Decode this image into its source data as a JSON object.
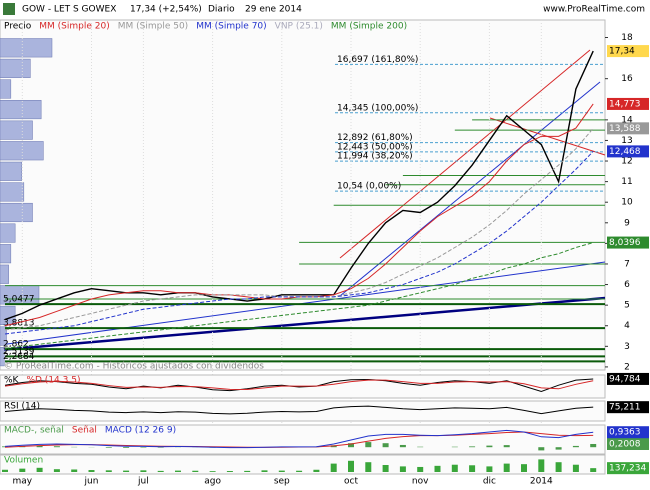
{
  "header": {
    "symbol": "GOW - LET S GOWEX",
    "quote": "17,34 (+2,54%)",
    "period": "Diario",
    "date": "29 ene 2014",
    "site": "www.ProRealTime.com",
    "watermark": "© ProRealTime.com - Históricos ajustados con dividendos",
    "legend_extra": "VNP (25.1)"
  },
  "chart_data": [
    {
      "type": "line",
      "ylim": [
        1.85,
        18.85
      ],
      "yticks": [
        2,
        3,
        4,
        5,
        6,
        7,
        8,
        9,
        10,
        11,
        12,
        13,
        14,
        16,
        18
      ],
      "categories": [
        null,
        "may",
        null,
        null,
        null,
        "jun",
        null,
        null,
        "jul",
        null,
        null,
        null,
        "ago",
        null,
        null,
        null,
        "sep",
        null,
        null,
        null,
        "oct",
        null,
        null,
        null,
        "nov",
        null,
        null,
        null,
        "dic",
        null,
        null,
        "2014",
        null,
        null,
        null
      ],
      "series": [
        {
          "name": "Precio",
          "color": "#000000",
          "box_color": "#ffd84d",
          "last_label": "17,34",
          "values": [
            4.3,
            4.6,
            5.0,
            5.3,
            5.6,
            5.8,
            5.7,
            5.6,
            5.6,
            5.5,
            5.6,
            5.6,
            5.4,
            5.3,
            5.2,
            5.3,
            5.5,
            5.5,
            5.5,
            5.5,
            6.8,
            8.0,
            9.0,
            9.6,
            9.5,
            10.0,
            10.8,
            11.8,
            13.0,
            14.2,
            13.5,
            12.8,
            11.0,
            15.5,
            17.34
          ]
        },
        {
          "name": "MM (Simple 20)",
          "color": "#d62728",
          "dash": false,
          "last_label": "14,773",
          "values": [
            4.0,
            4.2,
            4.4,
            4.7,
            5.0,
            5.3,
            5.5,
            5.6,
            5.7,
            5.7,
            5.6,
            5.6,
            5.5,
            5.5,
            5.4,
            5.3,
            5.3,
            5.4,
            5.4,
            5.5,
            5.8,
            6.3,
            7.0,
            7.8,
            8.6,
            9.3,
            9.8,
            10.3,
            11.0,
            12.0,
            12.8,
            13.2,
            13.2,
            13.6,
            14.773
          ]
        },
        {
          "name": "MM (Simple 50)",
          "color": "#999999",
          "dash": true,
          "last_label": "13,588",
          "values": [
            3.8,
            3.9,
            4.0,
            4.2,
            4.4,
            4.6,
            4.8,
            5.0,
            5.2,
            5.3,
            5.4,
            5.5,
            5.5,
            5.5,
            5.5,
            5.5,
            5.4,
            5.4,
            5.4,
            5.4,
            5.6,
            5.8,
            6.1,
            6.5,
            6.9,
            7.3,
            7.8,
            8.3,
            8.9,
            9.6,
            10.4,
            11.1,
            11.8,
            12.6,
            13.588
          ]
        },
        {
          "name": "MM (Simple 70)",
          "color": "#2233cc",
          "dash": true,
          "last_label": "12,468",
          "values": [
            3.6,
            3.7,
            3.8,
            3.9,
            4.0,
            4.2,
            4.4,
            4.6,
            4.8,
            4.9,
            5.0,
            5.1,
            5.2,
            5.3,
            5.3,
            5.4,
            5.4,
            5.4,
            5.4,
            5.4,
            5.5,
            5.6,
            5.8,
            6.0,
            6.3,
            6.6,
            7.0,
            7.5,
            8.0,
            8.6,
            9.3,
            10.0,
            10.8,
            11.6,
            12.468
          ]
        },
        {
          "name": "MM (Simple 200)",
          "color": "#2e8b2e",
          "dash": true,
          "last_label": "8,0396",
          "values": [
            2.9,
            3.0,
            3.1,
            3.2,
            3.3,
            3.4,
            3.5,
            3.6,
            3.7,
            3.8,
            3.9,
            4.0,
            4.1,
            4.2,
            4.3,
            4.4,
            4.5,
            4.6,
            4.7,
            4.8,
            4.9,
            5.0,
            5.2,
            5.4,
            5.6,
            5.8,
            6.0,
            6.3,
            6.5,
            6.8,
            7.0,
            7.3,
            7.5,
            7.8,
            8.0396
          ]
        }
      ],
      "fib": [
        {
          "value": 16.697,
          "label": "16,697 (161,80%)"
        },
        {
          "value": 14.345,
          "label": "14,345 (100,00%)"
        },
        {
          "value": 12.892,
          "label": "12,892 (61,80%)"
        },
        {
          "value": 12.443,
          "label": "12,443 (50,00%)"
        },
        {
          "value": 11.994,
          "label": "11,994 (38,20%)"
        },
        {
          "value": 10.54,
          "label": "10,54 (0,00%)"
        }
      ],
      "levels": [
        {
          "value": 14.0,
          "from": 27
        },
        {
          "value": 13.5,
          "from": 26
        },
        {
          "value": 11.3,
          "from": 23
        },
        {
          "value": 10.85,
          "from": 22
        },
        {
          "value": 9.85,
          "from": 19
        },
        {
          "value": 8.05,
          "from": 17
        },
        {
          "value": 7.0,
          "from": 17
        },
        {
          "value": 5.95,
          "from": 0
        },
        {
          "value": 5.3,
          "from": 0
        },
        {
          "value": 5.0477,
          "from": 0,
          "label": "5,0477"
        },
        {
          "value": 3.8813,
          "from": 0,
          "label": "3,8813"
        },
        {
          "value": 2.862,
          "from": 0,
          "label": "2,862"
        },
        {
          "value": 2.5139,
          "from": 0,
          "label": "2,5139"
        },
        {
          "value": 2.2684,
          "from": 0,
          "label": "2,2684"
        }
      ],
      "volume_profile": {
        "color": "#aab4dd",
        "bins": [
          2,
          3,
          4,
          5,
          6,
          7,
          8,
          9,
          10,
          11,
          12,
          13,
          14,
          15,
          16,
          17,
          18
        ],
        "values": [
          4,
          6,
          14,
          36,
          8,
          10,
          14,
          30,
          22,
          20,
          40,
          30,
          38,
          10,
          28,
          48
        ]
      }
    },
    {
      "type": "line",
      "ylim": [
        0,
        100
      ],
      "series": [
        {
          "name": "%K",
          "color": "#000000",
          "values": [
            60,
            75,
            85,
            80,
            70,
            65,
            50,
            40,
            55,
            45,
            60,
            50,
            35,
            30,
            40,
            55,
            60,
            50,
            55,
            80,
            90,
            92,
            85,
            70,
            60,
            75,
            85,
            80,
            70,
            85,
            55,
            25,
            60,
            88,
            94.784
          ],
          "last_label": "94,784"
        },
        {
          "name": "%D (14 3 5)",
          "color": "#d62728",
          "values": [
            55,
            68,
            78,
            82,
            78,
            70,
            58,
            48,
            50,
            48,
            53,
            52,
            45,
            37,
            36,
            45,
            55,
            55,
            55,
            65,
            80,
            88,
            88,
            80,
            70,
            70,
            78,
            80,
            78,
            80,
            68,
            45,
            40,
            65,
            85
          ]
        }
      ]
    },
    {
      "type": "line",
      "ylim": [
        20,
        90
      ],
      "series": [
        {
          "name": "RSI (14)",
          "color": "#000000",
          "values": [
            55,
            62,
            68,
            65,
            60,
            58,
            52,
            50,
            53,
            50,
            54,
            52,
            46,
            44,
            47,
            52,
            55,
            53,
            55,
            72,
            78,
            80,
            74,
            68,
            64,
            68,
            72,
            70,
            68,
            74,
            60,
            45,
            58,
            70,
            75.211
          ],
          "last_label": "75,211"
        }
      ]
    },
    {
      "type": "line",
      "ylim": [
        -0.3,
        1.2
      ],
      "series": [
        {
          "name": "MACD-, señal",
          "color": "#4a9a4a",
          "kind": "bar",
          "values": [
            0.05,
            0.07,
            0.08,
            0.06,
            0.02,
            -0.01,
            -0.04,
            -0.05,
            -0.03,
            -0.03,
            -0.01,
            -0.01,
            -0.03,
            -0.04,
            -0.03,
            0.01,
            0.02,
            0.01,
            0.01,
            0.12,
            0.25,
            0.32,
            0.25,
            0.14,
            0.03,
            0,
            0.03,
            0.05,
            0.1,
            0.13,
            0,
            -0.2,
            -0.15,
            0.08,
            0.2008
          ],
          "last_label": "0,2008"
        },
        {
          "name": "Señal",
          "color": "#d62728",
          "values": [
            0.0,
            0.05,
            0.1,
            0.14,
            0.16,
            0.16,
            0.14,
            0.11,
            0.08,
            0.06,
            0.05,
            0.04,
            0.03,
            0.01,
            0.0,
            -0.01,
            0.0,
            0.01,
            0.02,
            0.08,
            0.2,
            0.38,
            0.55,
            0.66,
            0.72,
            0.72,
            0.75,
            0.8,
            0.85,
            0.92,
            0.95,
            0.85,
            0.75,
            0.72,
            0.7355
          ]
        },
        {
          "name": "MACD (12 26 9)",
          "color": "#2233cc",
          "values": [
            0.05,
            0.12,
            0.18,
            0.2,
            0.18,
            0.15,
            0.1,
            0.06,
            0.05,
            0.03,
            0.04,
            0.03,
            0.0,
            -0.03,
            -0.03,
            0.0,
            0.02,
            0.02,
            0.03,
            0.2,
            0.45,
            0.7,
            0.8,
            0.8,
            0.75,
            0.72,
            0.78,
            0.85,
            0.95,
            1.05,
            0.95,
            0.65,
            0.6,
            0.8,
            0.9363
          ],
          "last_label": "0,9363"
        }
      ]
    },
    {
      "type": "bar",
      "ylim": [
        0,
        500
      ],
      "series": [
        {
          "name": "Volumen",
          "color": "#3aa63a",
          "values": [
            80,
            120,
            150,
            100,
            90,
            70,
            60,
            50,
            60,
            40,
            50,
            45,
            30,
            35,
            40,
            60,
            50,
            45,
            80,
            300,
            400,
            350,
            250,
            200,
            180,
            220,
            260,
            240,
            200,
            300,
            280,
            450,
            350,
            260,
            137.234
          ],
          "last_label": "137,234"
        }
      ]
    }
  ]
}
